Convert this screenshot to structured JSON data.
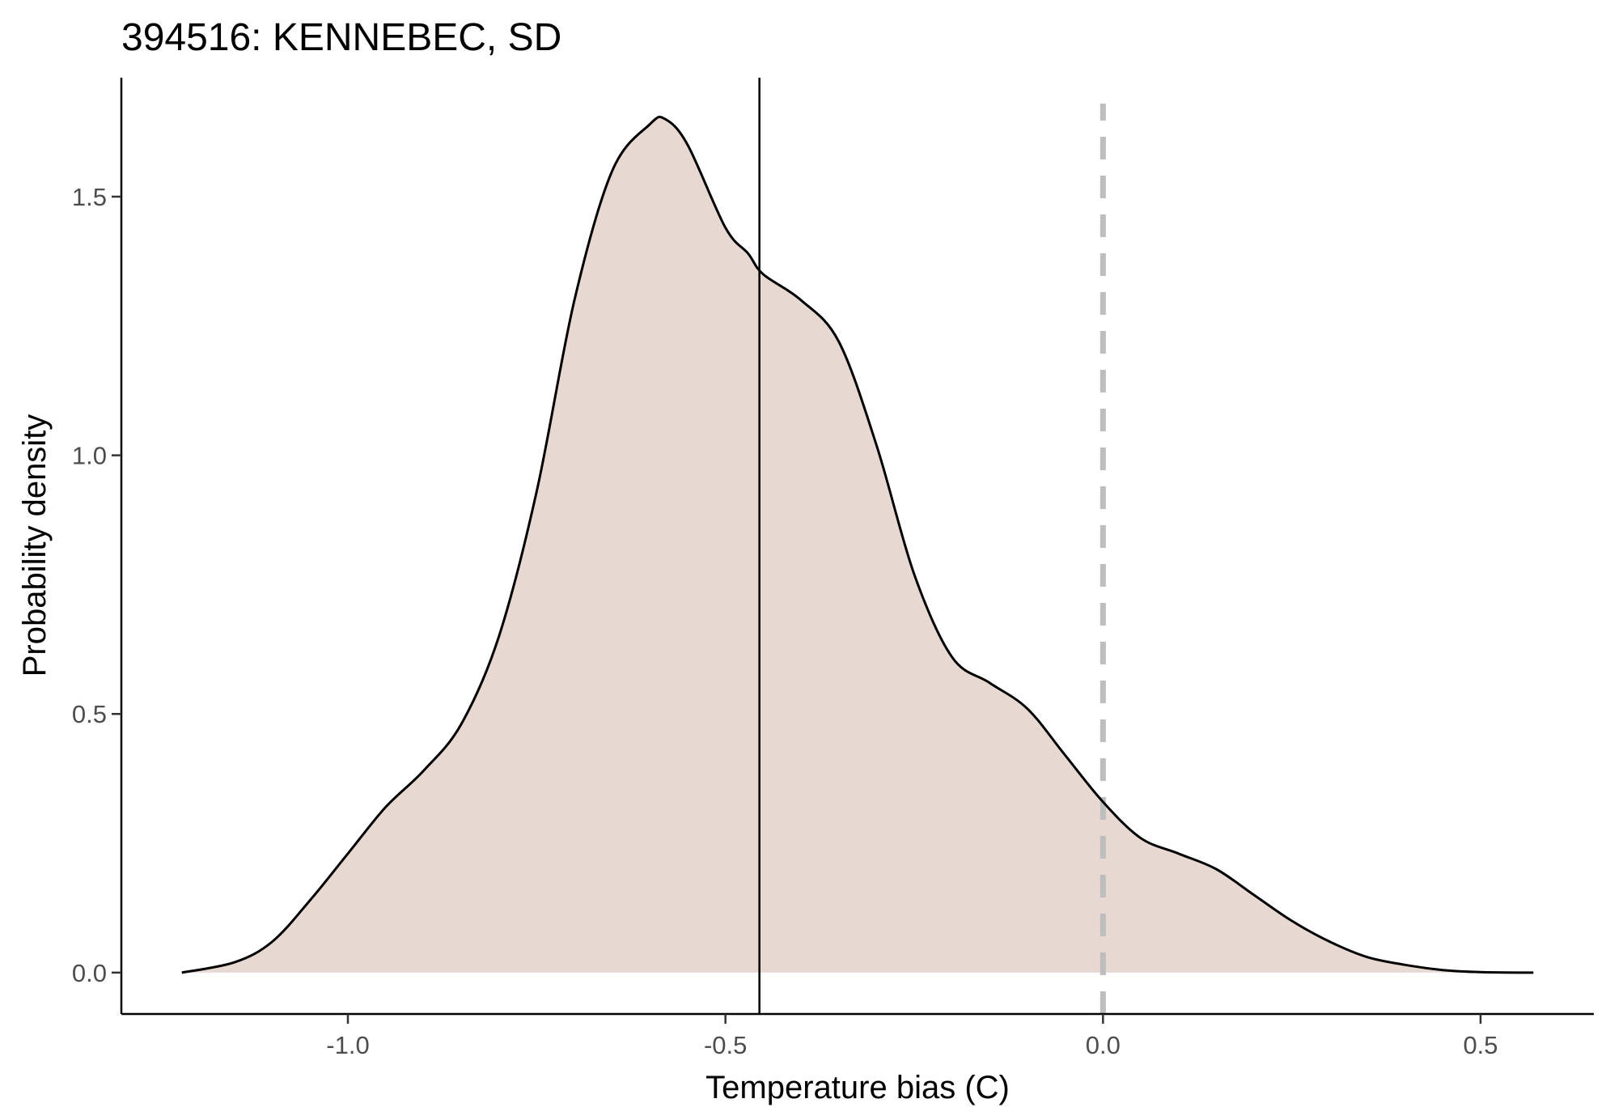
{
  "chart_data": {
    "type": "area",
    "title": "394516: KENNEBEC, SD",
    "xlabel": "Temperature bias (C)",
    "ylabel": "Probability density",
    "xlim": [
      -1.3,
      0.65
    ],
    "ylim": [
      -0.08,
      1.73
    ],
    "x_ticks": [
      -1.0,
      -0.5,
      0.0,
      0.5
    ],
    "x_tick_labels": [
      "-1.0",
      "-0.5",
      "0.0",
      "0.5"
    ],
    "y_ticks": [
      0.0,
      0.5,
      1.0,
      1.5
    ],
    "y_tick_labels": [
      "0.0",
      "0.5",
      "1.0",
      "1.5"
    ],
    "grid": false,
    "legend": "none",
    "fill_color": "#e8d8d2",
    "line_color": "#000000",
    "mean_line": {
      "x": -0.455,
      "color": "#000000",
      "style": "solid"
    },
    "reference_line": {
      "x": 0.0,
      "color": "#bebebe",
      "style": "dashed",
      "y_range": [
        -0.08,
        1.68
      ]
    },
    "series": [
      {
        "x": [
          -1.22,
          -1.15,
          -1.1,
          -1.05,
          -1.0,
          -0.95,
          -0.9,
          -0.85,
          -0.8,
          -0.75,
          -0.7,
          -0.65,
          -0.6,
          -0.58,
          -0.55,
          -0.5,
          -0.47,
          -0.45,
          -0.4,
          -0.35,
          -0.3,
          -0.25,
          -0.2,
          -0.15,
          -0.1,
          -0.05,
          0.0,
          0.05,
          0.1,
          0.15,
          0.2,
          0.25,
          0.3,
          0.35,
          0.4,
          0.45,
          0.5,
          0.57
        ],
        "y": [
          0.0,
          0.02,
          0.06,
          0.14,
          0.23,
          0.32,
          0.39,
          0.48,
          0.65,
          0.93,
          1.3,
          1.55,
          1.64,
          1.65,
          1.6,
          1.44,
          1.39,
          1.35,
          1.3,
          1.22,
          1.02,
          0.77,
          0.61,
          0.56,
          0.51,
          0.42,
          0.33,
          0.26,
          0.23,
          0.2,
          0.15,
          0.1,
          0.06,
          0.03,
          0.015,
          0.005,
          0.001,
          0.0
        ]
      }
    ]
  }
}
